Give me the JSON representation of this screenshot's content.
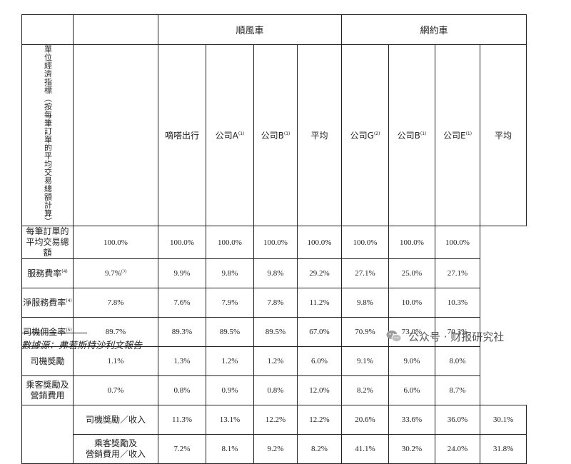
{
  "groups": {
    "shunfeng": "順風車",
    "wangyue": "網約車"
  },
  "vertical_label": "單位經濟指標（按每筆訂單的平均交易總額計算）",
  "columns": [
    {
      "label": "嘀嗒出行",
      "note": ""
    },
    {
      "label": "公司A",
      "note": "(1)"
    },
    {
      "label": "公司B",
      "note": "(1)"
    },
    {
      "label": "平均",
      "note": ""
    },
    {
      "label": "公司G",
      "note": "(2)"
    },
    {
      "label": "公司B",
      "note": "(1)"
    },
    {
      "label": "公司E",
      "note": "(1)"
    },
    {
      "label": "平均",
      "note": ""
    }
  ],
  "rows": [
    {
      "l1": "每筆訂單的",
      "l2": "平均交易總額",
      "note": "",
      "cells": [
        {
          "v": "100.0%",
          "n": ""
        },
        {
          "v": "100.0%",
          "n": ""
        },
        {
          "v": "100.0%",
          "n": ""
        },
        {
          "v": "100.0%",
          "n": ""
        },
        {
          "v": "100.0%",
          "n": ""
        },
        {
          "v": "100.0%",
          "n": ""
        },
        {
          "v": "100.0%",
          "n": ""
        },
        {
          "v": "100.0%",
          "n": ""
        }
      ]
    },
    {
      "l1": "服務費率",
      "l2": "",
      "note": "(4)",
      "cells": [
        {
          "v": "9.7%",
          "n": "(3)"
        },
        {
          "v": "9.9%",
          "n": ""
        },
        {
          "v": "9.8%",
          "n": ""
        },
        {
          "v": "9.8%",
          "n": ""
        },
        {
          "v": "29.2%",
          "n": ""
        },
        {
          "v": "27.1%",
          "n": ""
        },
        {
          "v": "25.0%",
          "n": ""
        },
        {
          "v": "27.1%",
          "n": ""
        }
      ]
    },
    {
      "l1": "淨服務費率",
      "l2": "",
      "note": "(4)",
      "cells": [
        {
          "v": "7.8%",
          "n": ""
        },
        {
          "v": "7.6%",
          "n": ""
        },
        {
          "v": "7.9%",
          "n": ""
        },
        {
          "v": "7.8%",
          "n": ""
        },
        {
          "v": "11.2%",
          "n": ""
        },
        {
          "v": "9.8%",
          "n": ""
        },
        {
          "v": "10.0%",
          "n": ""
        },
        {
          "v": "10.3%",
          "n": ""
        }
      ]
    },
    {
      "l1": "司機佣金率",
      "l2": "",
      "note": "(5)",
      "cells": [
        {
          "v": "89.7%",
          "n": ""
        },
        {
          "v": "89.3%",
          "n": ""
        },
        {
          "v": "89.5%",
          "n": ""
        },
        {
          "v": "89.5%",
          "n": ""
        },
        {
          "v": "67.0%",
          "n": ""
        },
        {
          "v": "70.9%",
          "n": ""
        },
        {
          "v": "73.0%",
          "n": ""
        },
        {
          "v": "70.3%",
          "n": ""
        }
      ]
    },
    {
      "l1": "司機獎勵",
      "l2": "",
      "note": "",
      "cells": [
        {
          "v": "1.1%",
          "n": ""
        },
        {
          "v": "1.3%",
          "n": ""
        },
        {
          "v": "1.2%",
          "n": ""
        },
        {
          "v": "1.2%",
          "n": ""
        },
        {
          "v": "6.0%",
          "n": ""
        },
        {
          "v": "9.1%",
          "n": ""
        },
        {
          "v": "9.0%",
          "n": ""
        },
        {
          "v": "8.0%",
          "n": ""
        }
      ]
    },
    {
      "l1": "乘客獎勵及",
      "l2": "營銷費用",
      "note": "",
      "cells": [
        {
          "v": "0.7%",
          "n": ""
        },
        {
          "v": "0.8%",
          "n": ""
        },
        {
          "v": "0.9%",
          "n": ""
        },
        {
          "v": "0.8%",
          "n": ""
        },
        {
          "v": "12.0%",
          "n": ""
        },
        {
          "v": "8.2%",
          "n": ""
        },
        {
          "v": "6.0%",
          "n": ""
        },
        {
          "v": "8.7%",
          "n": ""
        }
      ]
    }
  ],
  "ratio_rows": [
    {
      "l1": "司機獎勵／收入",
      "l2": "",
      "note": "",
      "cells": [
        {
          "v": "11.3%",
          "n": ""
        },
        {
          "v": "13.1%",
          "n": ""
        },
        {
          "v": "12.2%",
          "n": ""
        },
        {
          "v": "12.2%",
          "n": ""
        },
        {
          "v": "20.6%",
          "n": ""
        },
        {
          "v": "33.6%",
          "n": ""
        },
        {
          "v": "36.0%",
          "n": ""
        },
        {
          "v": "30.1%",
          "n": ""
        }
      ]
    },
    {
      "l1": "乘客獎勵及",
      "l2": "營銷費用／收入",
      "note": "",
      "cells": [
        {
          "v": "7.2%",
          "n": ""
        },
        {
          "v": "8.1%",
          "n": ""
        },
        {
          "v": "9.2%",
          "n": ""
        },
        {
          "v": "8.2%",
          "n": ""
        },
        {
          "v": "41.1%",
          "n": ""
        },
        {
          "v": "30.2%",
          "n": ""
        },
        {
          "v": "24.0%",
          "n": ""
        },
        {
          "v": "31.8%",
          "n": ""
        }
      ]
    }
  ],
  "source": "數據源：弗若斯特沙利文報告",
  "watermark": {
    "text": "公众号 · 财报研究社",
    "icon": "wechat-icon"
  }
}
